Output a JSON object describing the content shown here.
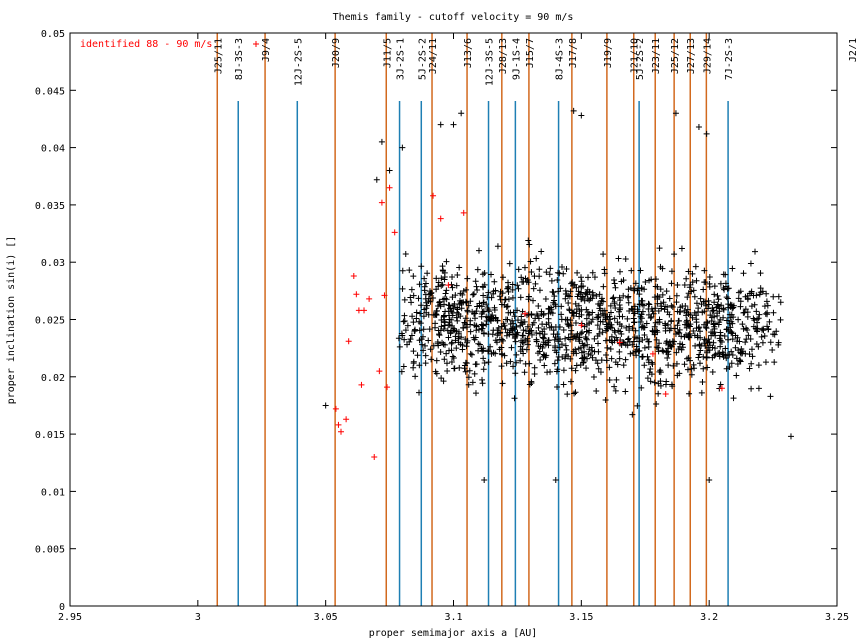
{
  "chart_data": {
    "type": "scatter",
    "title": "Themis family - cutoff velocity = 90 m/s",
    "xlabel": "proper semimajor axis a [AU]",
    "ylabel": "proper inclination sin(i) []",
    "xlim": [
      2.95,
      3.25
    ],
    "ylim": [
      0,
      0.05
    ],
    "xticks": [
      "2.95",
      "3",
      "3.05",
      "3.1",
      "3.15",
      "3.2",
      "3.25"
    ],
    "yticks": [
      "0",
      "0.005",
      "0.01",
      "0.015",
      "0.02",
      "0.025",
      "0.03",
      "0.035",
      "0.04",
      "0.045",
      "0.05"
    ],
    "legend": {
      "label": "identified 88 - 90 m/s",
      "position": "top-left",
      "color": "#ff0000"
    },
    "resonances": [
      {
        "label": "J25/11",
        "a": 3.0076,
        "type": "two-body"
      },
      {
        "label": "8J-3S-3",
        "a": 3.0158,
        "type": "three-body"
      },
      {
        "label": "J9/4",
        "a": 3.0263,
        "type": "two-body"
      },
      {
        "label": "12J-2S-5",
        "a": 3.0389,
        "type": "three-body"
      },
      {
        "label": "J20/9",
        "a": 3.0537,
        "type": "two-body"
      },
      {
        "label": "J11/5",
        "a": 3.0737,
        "type": "two-body"
      },
      {
        "label": "3J-2S-1",
        "a": 3.0789,
        "type": "three-body"
      },
      {
        "label": "5J-2S-2",
        "a": 3.0874,
        "type": "three-body"
      },
      {
        "label": "J24/11",
        "a": 3.0916,
        "type": "two-body"
      },
      {
        "label": "J13/6",
        "a": 3.1053,
        "type": "two-body"
      },
      {
        "label": "12J-3S-5",
        "a": 3.1137,
        "type": "three-body"
      },
      {
        "label": "J28/13",
        "a": 3.1189,
        "type": "two-body"
      },
      {
        "label": "9J-1S-4",
        "a": 3.1242,
        "type": "three-body"
      },
      {
        "label": "J15/7",
        "a": 3.1295,
        "type": "two-body"
      },
      {
        "label": "8J-4S-3",
        "a": 3.1411,
        "type": "three-body"
      },
      {
        "label": "J17/8",
        "a": 3.1463,
        "type": "two-body"
      },
      {
        "label": "J19/9",
        "a": 3.16,
        "type": "two-body"
      },
      {
        "label": "J21/10",
        "a": 3.1705,
        "type": "two-body"
      },
      {
        "label": "5J-2S-2",
        "a": 3.1726,
        "type": "three-body"
      },
      {
        "label": "J23/11",
        "a": 3.1789,
        "type": "two-body"
      },
      {
        "label": "J25/12",
        "a": 3.1863,
        "type": "two-body"
      },
      {
        "label": "J27/13",
        "a": 3.1926,
        "type": "two-body"
      },
      {
        "label": "J29/14",
        "a": 3.1989,
        "type": "two-body"
      },
      {
        "label": "7J-2S-3",
        "a": 3.2074,
        "type": "three-body"
      },
      {
        "label": "J2/1",
        "a": 3.2779,
        "type": "two-body"
      }
    ],
    "colors": {
      "two-body": "#d2691e",
      "three-body": "#1e7fb4",
      "members": "#000000",
      "identified": "#ff0000",
      "axes": "#000000"
    },
    "series": [
      {
        "name": "identified 88 - 90 m/s",
        "color": "#ff0000",
        "points": [
          [
            3.054,
            0.0172
          ],
          [
            3.055,
            0.0158
          ],
          [
            3.056,
            0.0152
          ],
          [
            3.058,
            0.0163
          ],
          [
            3.059,
            0.0231
          ],
          [
            3.061,
            0.0288
          ],
          [
            3.062,
            0.0272
          ],
          [
            3.063,
            0.0258
          ],
          [
            3.064,
            0.0193
          ],
          [
            3.065,
            0.0258
          ],
          [
            3.067,
            0.0268
          ],
          [
            3.069,
            0.013
          ],
          [
            3.071,
            0.0205
          ],
          [
            3.072,
            0.0352
          ],
          [
            3.073,
            0.0271
          ],
          [
            3.074,
            0.0191
          ],
          [
            3.075,
            0.0365
          ],
          [
            3.077,
            0.0326
          ],
          [
            3.092,
            0.0358
          ],
          [
            3.095,
            0.0338
          ],
          [
            3.098,
            0.028
          ],
          [
            3.104,
            0.0343
          ],
          [
            3.128,
            0.0255
          ],
          [
            3.15,
            0.0245
          ],
          [
            3.165,
            0.023
          ],
          [
            3.178,
            0.022
          ],
          [
            3.183,
            0.0185
          ],
          [
            3.205,
            0.019
          ]
        ]
      }
    ]
  }
}
